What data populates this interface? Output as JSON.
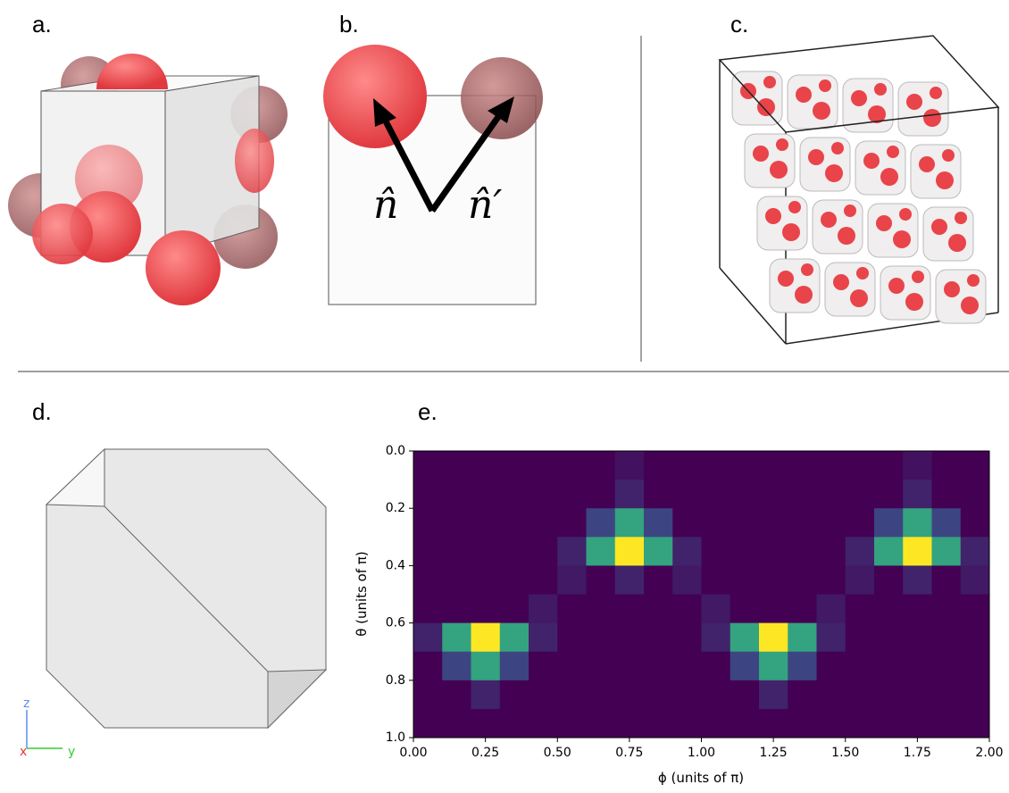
{
  "panels": {
    "a": "a.",
    "b": "b.",
    "c": "c.",
    "d": "d.",
    "e": "e."
  },
  "vectors": {
    "n": "n̂",
    "n_prime": "n̂′"
  },
  "axes_triad": {
    "z": "z",
    "x": "x",
    "y": "y"
  },
  "chart_data": {
    "type": "heatmap",
    "colormap": "viridis",
    "xlabel": "ϕ (units of π)",
    "ylabel": "θ (units of π)",
    "xlim": [
      0,
      2
    ],
    "ylim": [
      0,
      1
    ],
    "y_inverted": true,
    "xticks": [
      {
        "value": 0,
        "label": "0.00"
      },
      {
        "value": 0.25,
        "label": "0.25"
      },
      {
        "value": 0.5,
        "label": "0.50"
      },
      {
        "value": 0.75,
        "label": "0.75"
      },
      {
        "value": 1,
        "label": "1.00"
      },
      {
        "value": 1.25,
        "label": "1.25"
      },
      {
        "value": 1.5,
        "label": "1.50"
      },
      {
        "value": 1.75,
        "label": "1.75"
      },
      {
        "value": 2,
        "label": "2.00"
      }
    ],
    "yticks": [
      {
        "value": 0,
        "label": "0.0"
      },
      {
        "value": 0.2,
        "label": "0.2"
      },
      {
        "value": 0.4,
        "label": "0.4"
      },
      {
        "value": 0.6,
        "label": "0.6"
      },
      {
        "value": 0.8,
        "label": "0.8"
      },
      {
        "value": 1,
        "label": "1.0"
      }
    ],
    "values": [
      [
        5,
        5,
        5,
        5,
        5,
        5,
        5,
        10,
        5,
        5,
        5,
        5,
        5,
        5,
        5,
        5,
        5,
        10,
        5,
        5
      ],
      [
        5,
        5,
        5,
        5,
        5,
        5,
        5,
        15,
        5,
        5,
        5,
        5,
        5,
        5,
        5,
        5,
        5,
        15,
        5,
        5
      ],
      [
        5,
        5,
        5,
        5,
        5,
        5,
        25,
        60,
        25,
        5,
        5,
        5,
        5,
        5,
        5,
        5,
        25,
        60,
        25,
        5
      ],
      [
        5,
        5,
        5,
        5,
        5,
        15,
        60,
        100,
        60,
        15,
        5,
        5,
        5,
        5,
        5,
        15,
        60,
        100,
        60,
        15
      ],
      [
        5,
        5,
        5,
        5,
        5,
        12,
        5,
        15,
        5,
        12,
        5,
        5,
        5,
        5,
        5,
        12,
        5,
        15,
        5,
        12
      ],
      [
        5,
        5,
        5,
        5,
        12,
        5,
        5,
        5,
        5,
        5,
        12,
        5,
        5,
        5,
        12,
        5,
        5,
        5,
        5,
        5
      ],
      [
        15,
        60,
        100,
        60,
        15,
        5,
        5,
        5,
        5,
        5,
        15,
        60,
        100,
        60,
        15,
        5,
        5,
        5,
        5,
        5
      ],
      [
        5,
        25,
        60,
        25,
        5,
        5,
        5,
        5,
        5,
        5,
        5,
        25,
        60,
        25,
        5,
        5,
        5,
        5,
        5,
        5
      ],
      [
        5,
        5,
        15,
        5,
        5,
        5,
        5,
        5,
        5,
        5,
        5,
        5,
        15,
        5,
        5,
        5,
        5,
        5,
        5,
        5
      ],
      [
        5,
        5,
        5,
        5,
        5,
        5,
        5,
        5,
        5,
        5,
        5,
        5,
        5,
        5,
        5,
        5,
        5,
        5,
        5,
        5
      ]
    ]
  }
}
